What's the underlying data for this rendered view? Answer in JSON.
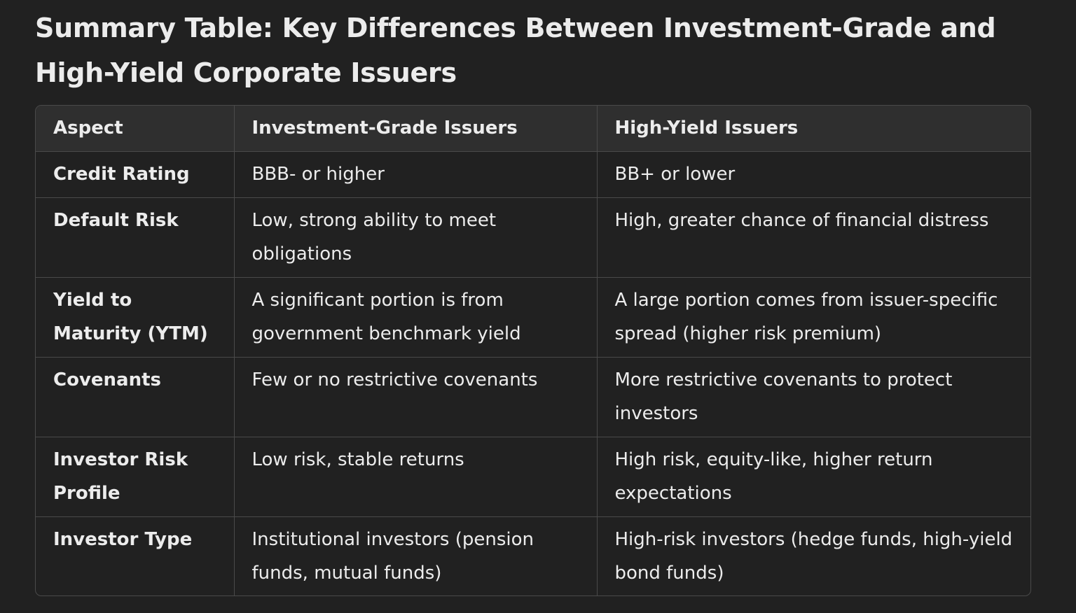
{
  "title": "Summary Table: Key Differences Between Investment-Grade and High-Yield Corporate Issuers",
  "table": {
    "headers": [
      "Aspect",
      "Investment-Grade Issuers",
      "High-Yield Issuers"
    ],
    "rows": [
      [
        "Credit Rating",
        "BBB- or higher",
        "BB+ or lower"
      ],
      [
        "Default Risk",
        "Low, strong ability to meet obligations",
        "High, greater chance of financial distress"
      ],
      [
        "Yield to Maturity (YTM)",
        "A significant portion is from government benchmark yield",
        "A large portion comes from issuer-specific spread (higher risk premium)"
      ],
      [
        "Covenants",
        "Few or no restrictive covenants",
        "More restrictive covenants to protect investors"
      ],
      [
        "Investor Risk Profile",
        "Low risk, stable returns",
        "High risk, equity-like, higher return expectations"
      ],
      [
        "Investor Type",
        "Institutional investors (pension funds, mutual funds)",
        "High-risk investors (hedge funds, high-yield bond funds)"
      ]
    ]
  }
}
